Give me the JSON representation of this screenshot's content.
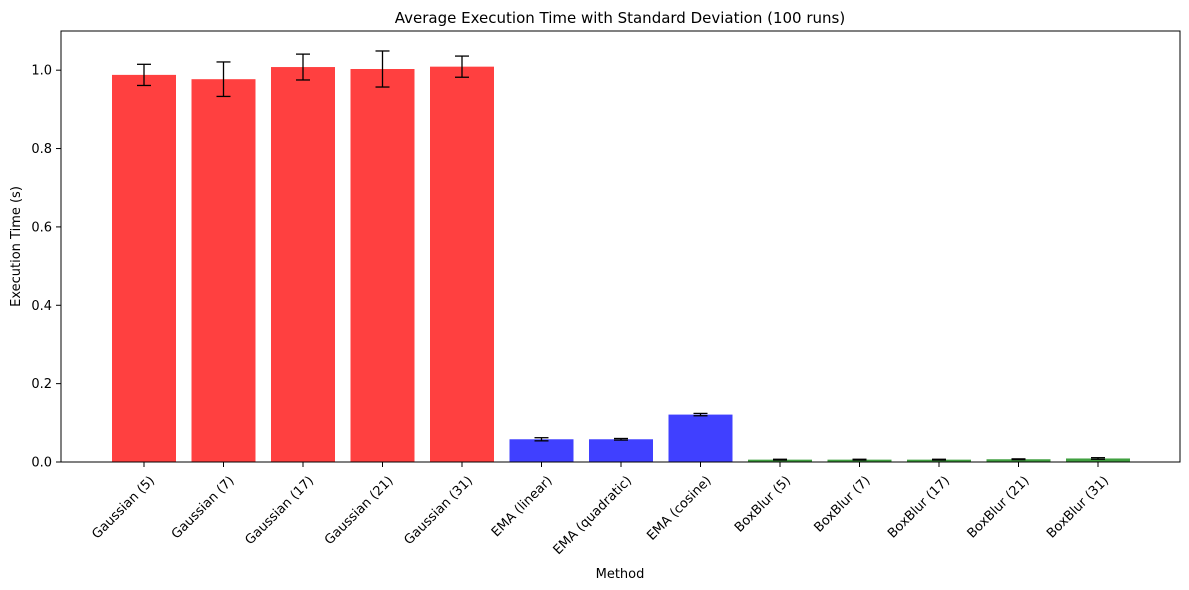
{
  "chart_data": {
    "type": "bar",
    "title": "Average Execution Time with Standard Deviation (100 runs)",
    "xlabel": "Method",
    "ylabel": "Execution Time (s)",
    "ylim": [
      0,
      1.1
    ],
    "yticks": [
      "0.0",
      "0.2",
      "0.4",
      "0.6",
      "0.8",
      "1.0"
    ],
    "grid": false,
    "categories": [
      "Gaussian (5)",
      "Gaussian (7)",
      "Gaussian (17)",
      "Gaussian (21)",
      "Gaussian (31)",
      "EMA (linear)",
      "EMA (quadratic)",
      "EMA (cosine)",
      "BoxBlur (5)",
      "BoxBlur (7)",
      "BoxBlur (17)",
      "BoxBlur (21)",
      "BoxBlur (31)"
    ],
    "values": [
      0.988,
      0.977,
      1.008,
      1.003,
      1.009,
      0.058,
      0.058,
      0.121,
      0.006,
      0.006,
      0.006,
      0.007,
      0.009
    ],
    "errors": [
      0.027,
      0.044,
      0.033,
      0.046,
      0.027,
      0.004,
      0.002,
      0.003,
      0.001,
      0.001,
      0.001,
      0.001,
      0.002
    ],
    "colors": [
      "#ff4040",
      "#ff4040",
      "#ff4040",
      "#ff4040",
      "#ff4040",
      "#4040ff",
      "#4040ff",
      "#4040ff",
      "#40a040",
      "#40a040",
      "#40a040",
      "#40a040",
      "#40a040"
    ]
  }
}
